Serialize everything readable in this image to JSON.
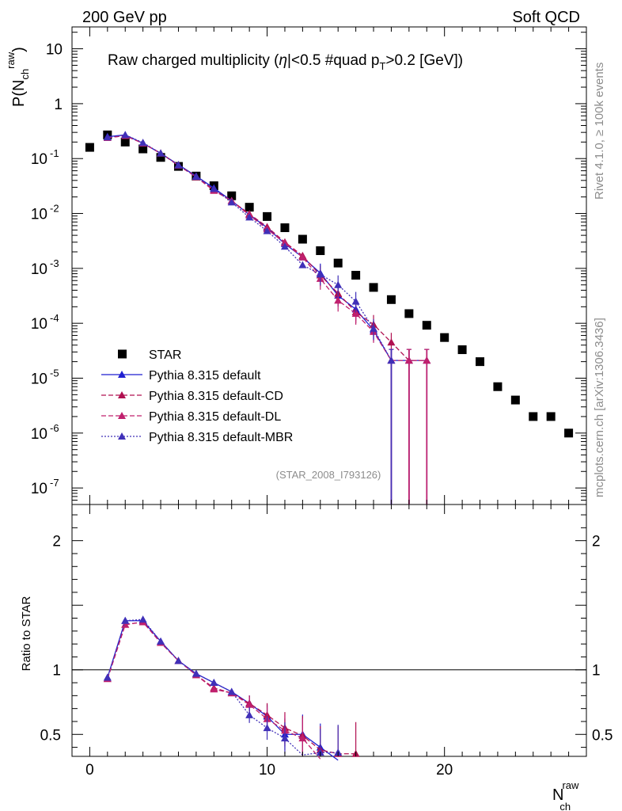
{
  "header": {
    "left": "200 GeV pp",
    "right": "Soft QCD"
  },
  "side_labels": {
    "rivet": "Rivet 4.1.0, ≥ 100k events",
    "mcplots": "mcplots.cern.ch [arXiv:1306.3436]"
  },
  "watermark": "(STAR_2008_I793126)",
  "chart_data": [
    {
      "type": "scatter",
      "panel": "main",
      "title": "Raw charged multiplicity (|η|<0.5 #quad p_T>0.2 [GeV])",
      "title_parts": {
        "a": "Raw charged multiplicity (",
        "eta": "η",
        "b": "|<0.5 #quad p",
        "sub": "T",
        "c": ">0.2 [GeV])"
      },
      "ylabel": "P(N_ch^raw)",
      "ylabel_parts": {
        "p": "P(N",
        "sub": "ch",
        "sup": "raw",
        "close": ")"
      },
      "yscale": "log",
      "ylim": [
        5e-08,
        25
      ],
      "xlim": [
        -1,
        28
      ],
      "x_ticks": [
        "0",
        "10",
        "20"
      ],
      "y_ticks": [
        {
          "mant": "10",
          "exp": "-7"
        },
        {
          "mant": "10",
          "exp": "-6"
        },
        {
          "mant": "10",
          "exp": "-5"
        },
        {
          "mant": "10",
          "exp": "-4"
        },
        {
          "mant": "10",
          "exp": "-3"
        },
        {
          "mant": "10",
          "exp": "-2"
        },
        {
          "mant": "10",
          "exp": "-1"
        },
        {
          "mant": "1",
          "exp": ""
        },
        {
          "mant": "10",
          "exp": ""
        }
      ],
      "legend_position": "bottom-left",
      "series": [
        {
          "name": "STAR",
          "marker": "square",
          "color": "#000000",
          "x": [
            0,
            1,
            2,
            3,
            4,
            5,
            6,
            7,
            8,
            9,
            10,
            11,
            12,
            13,
            14,
            15,
            16,
            17,
            18,
            19,
            20,
            21,
            22,
            23,
            24,
            25,
            26,
            27
          ],
          "y": [
            0.16,
            0.27,
            0.2,
            0.15,
            0.105,
            0.072,
            0.048,
            0.032,
            0.021,
            0.013,
            0.0088,
            0.0055,
            0.0034,
            0.0021,
            0.00125,
            0.00075,
            0.00045,
            0.00027,
            0.00015,
            9.2e-05,
            5.5e-05,
            3.3e-05,
            2e-05,
            7e-06,
            4e-06,
            2e-06,
            2e-06,
            1e-06
          ]
        },
        {
          "name": "Pythia 8.315 default",
          "marker": "triangle",
          "color": "#1f1fd0",
          "line": "solid",
          "x": [
            1,
            2,
            3,
            4,
            5,
            6,
            7,
            8,
            9,
            10,
            11,
            12,
            13,
            14,
            15,
            16,
            17,
            18,
            19
          ],
          "y": [
            0.25,
            0.27,
            0.19,
            0.125,
            0.077,
            0.048,
            0.029,
            0.017,
            0.0095,
            0.0055,
            0.0028,
            0.0016,
            0.00082,
            0.00032,
            0.00018,
            7.5e-05,
            2.1e-05,
            2.1e-05,
            2.1e-05
          ]
        },
        {
          "name": "Pythia 8.315 default-CD",
          "marker": "triangle",
          "color": "#b01050",
          "line": "dashed",
          "x": [
            1,
            2,
            3,
            4,
            5,
            6,
            7,
            8,
            9,
            10,
            11,
            12,
            13,
            14,
            15,
            16,
            17,
            18,
            19
          ],
          "y": [
            0.24,
            0.26,
            0.19,
            0.125,
            0.076,
            0.047,
            0.027,
            0.017,
            0.0098,
            0.0057,
            0.003,
            0.0017,
            0.00075,
            0.00035,
            0.00016,
            9.5e-05,
            4.5e-05,
            2.1e-05,
            2.1e-05
          ]
        },
        {
          "name": "Pythia 8.315 default-DL",
          "marker": "triangle",
          "color": "#c0206e",
          "line": "dashed",
          "x": [
            1,
            2,
            3,
            4,
            5,
            6,
            7,
            8,
            9,
            10,
            11,
            12,
            13,
            14,
            15,
            16,
            17,
            18,
            19
          ],
          "y": [
            0.24,
            0.26,
            0.19,
            0.124,
            0.075,
            0.046,
            0.026,
            0.017,
            0.0093,
            0.0052,
            0.0029,
            0.0016,
            0.00065,
            0.00026,
            0.00015,
            7e-05,
            2.1e-05,
            2.1e-05,
            2.1e-05
          ]
        },
        {
          "name": "Pythia 8.315 default-MBR",
          "marker": "triangle",
          "color": "#4030b8",
          "line": "dotted",
          "x": [
            1,
            2,
            3,
            4,
            5,
            6,
            7,
            8,
            9,
            10,
            11,
            12,
            13,
            14,
            15,
            16,
            17
          ],
          "y": [
            0.245,
            0.27,
            0.195,
            0.125,
            0.076,
            0.047,
            0.028,
            0.016,
            0.0085,
            0.0048,
            0.0025,
            0.00115,
            0.00078,
            0.0005,
            0.00025,
            8e-05,
            2.1e-05
          ]
        }
      ]
    },
    {
      "type": "line",
      "panel": "ratio",
      "ylabel": "Ratio to STAR",
      "xlabel": "N_ch^raw",
      "xlabel_parts": {
        "n": "N",
        "sub": "ch",
        "sup": "raw"
      },
      "xlim": [
        -1,
        28
      ],
      "ylim": [
        0.33,
        2.28
      ],
      "y_ticks": [
        "0.5",
        "1",
        "2"
      ],
      "reference_line": 1,
      "series": [
        {
          "name": "Pythia 8.315 default",
          "color": "#1f1fd0",
          "x": [
            1,
            2,
            3,
            4,
            5,
            6,
            7,
            8,
            9,
            10,
            11,
            12,
            13,
            14
          ],
          "y": [
            0.94,
            1.38,
            1.38,
            1.22,
            1.07,
            0.97,
            0.9,
            0.83,
            0.74,
            0.64,
            0.5,
            0.5,
            0.4,
            0.3
          ]
        },
        {
          "name": "Pythia 8.315 default-CD",
          "color": "#b01050",
          "x": [
            1,
            2,
            3,
            4,
            5,
            6,
            7,
            8,
            9,
            10,
            11,
            12,
            13,
            14,
            15
          ],
          "y": [
            0.93,
            1.35,
            1.37,
            1.21,
            1.07,
            0.96,
            0.86,
            0.82,
            0.74,
            0.65,
            0.55,
            0.49,
            0.38,
            0.35,
            0.35
          ]
        },
        {
          "name": "Pythia 8.315 default-DL",
          "color": "#c0206e",
          "x": [
            1,
            2,
            3,
            4,
            5,
            6,
            7,
            8,
            9,
            10,
            11,
            12,
            13
          ],
          "y": [
            0.93,
            1.35,
            1.37,
            1.21,
            1.07,
            0.96,
            0.85,
            0.82,
            0.73,
            0.62,
            0.53,
            0.47,
            0.31
          ]
        },
        {
          "name": "Pythia 8.315 default-MBR",
          "color": "#4030b8",
          "x": [
            1,
            2,
            3,
            4,
            5,
            6,
            7,
            8,
            9,
            10,
            11,
            12,
            13,
            14
          ],
          "y": [
            0.94,
            1.38,
            1.39,
            1.22,
            1.07,
            0.97,
            0.9,
            0.83,
            0.65,
            0.55,
            0.47,
            0.34,
            0.36,
            0.36
          ]
        }
      ]
    }
  ]
}
